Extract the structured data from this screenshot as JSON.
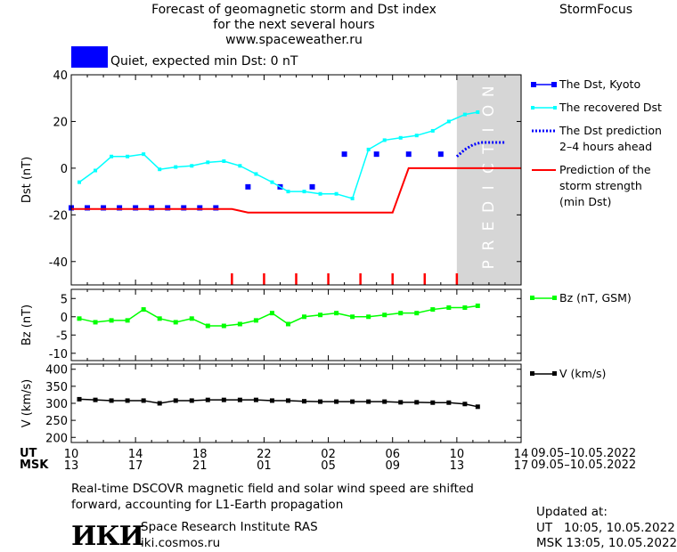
{
  "header": {
    "title_lines": [
      "Forecast of geomagnetic storm and Dst index",
      "for the next several hours",
      "www.spaceweather.ru"
    ],
    "brand": "StormFocus"
  },
  "status": {
    "text": "Quiet, expected min Dst: 0 nT",
    "color": "#0000ff"
  },
  "time_axis": {
    "ut_label": "UT",
    "msk_label": "MSK",
    "ut_ticks": [
      "10",
      "14",
      "18",
      "22",
      "02",
      "06",
      "10",
      "14"
    ],
    "msk_ticks": [
      "13",
      "17",
      "21",
      "01",
      "05",
      "09",
      "13",
      "17"
    ],
    "ut_range": "09.05–10.05.2022",
    "msk_range": "09.05–10.05.2022"
  },
  "legend": {
    "kyoto": "The Dst, Kyoto",
    "recovered": "The recovered Dst",
    "prediction": [
      "The Dst prediction",
      "2–4 hours ahead"
    ],
    "strength": [
      "Prediction of the",
      "storm strength",
      "(min Dst)"
    ],
    "bz": "Bz (nT, GSM)",
    "v": "V (km/s)"
  },
  "prediction_label": "PREDICTION",
  "footer": {
    "note": [
      "Real-time DSCOVR magnetic field and solar wind speed are shifted",
      "forward, accounting for L1-Earth propagation"
    ],
    "org": "Space Research Institute RAS",
    "site": "iki.cosmos.ru",
    "logo": "ИКИ",
    "updated_label": "Updated at:",
    "updated_ut": "UT   10:05, 10.05.2022",
    "updated_msk": "MSK 13:05, 10.05.2022"
  },
  "chart_data": [
    {
      "type": "line",
      "ylabel": "Dst (nT)",
      "xlim": [
        10,
        38
      ],
      "ylim": [
        -50,
        40
      ],
      "yticks": [
        40,
        20,
        0,
        -20,
        -40
      ],
      "x_unit": "hours from 00 UT 09.05.2022",
      "prediction_region": [
        34,
        38
      ],
      "series": [
        {
          "name": "The Dst, Kyoto",
          "style": "squares",
          "color": "#0000ff",
          "x": [
            10,
            11,
            12,
            13,
            14,
            15,
            16,
            17,
            18,
            19,
            21,
            23,
            25,
            27,
            29,
            31,
            33
          ],
          "y": [
            -17,
            -17,
            -17,
            -17,
            -17,
            -17,
            -17,
            -17,
            -17,
            -17,
            -8,
            -8,
            -8,
            6,
            6,
            6,
            6
          ]
        },
        {
          "name": "The recovered Dst",
          "style": "line-squares",
          "color": "#00ffff",
          "x": [
            10.5,
            11.5,
            12.5,
            13.5,
            14.5,
            15.5,
            16.5,
            17.5,
            18.5,
            19.5,
            20.5,
            21.5,
            22.5,
            23.5,
            24.5,
            25.5,
            26.5,
            27.5,
            28.5,
            29.5,
            30.5,
            31.5,
            32.5,
            33.5,
            34.5,
            35.3
          ],
          "y": [
            -6,
            -1,
            5,
            5,
            6,
            -0.5,
            0.5,
            1,
            2.5,
            3,
            1,
            -2.5,
            -6,
            -10,
            -10,
            -11,
            -11,
            -13,
            8,
            12,
            13,
            14,
            16,
            20,
            23,
            24
          ]
        },
        {
          "name": "The Dst prediction 2–4 hours ahead",
          "style": "dotted",
          "color": "#0000ff",
          "x": [
            34,
            34.5,
            35,
            35.5,
            36,
            36.5,
            37
          ],
          "y": [
            5,
            8,
            10,
            11,
            11,
            11,
            11
          ]
        },
        {
          "name": "Prediction of the storm strength (min Dst)",
          "style": "line",
          "color": "#ff0000",
          "x": [
            10,
            20,
            21,
            30,
            31,
            38
          ],
          "y": [
            -17.5,
            -17.5,
            -19,
            -19,
            0,
            0
          ]
        }
      ],
      "markers_x": [
        20,
        22,
        24,
        26,
        28,
        30,
        32,
        34
      ]
    },
    {
      "type": "line",
      "ylabel": "Bz (nT)",
      "xlim": [
        10,
        38
      ],
      "ylim": [
        -12,
        7.5
      ],
      "yticks": [
        5,
        0,
        -5,
        -10
      ],
      "series": [
        {
          "name": "Bz (nT, GSM)",
          "color": "#00ff00",
          "x": [
            10.5,
            11.5,
            12.5,
            13.5,
            14.5,
            15.5,
            16.5,
            17.5,
            18.5,
            19.5,
            20.5,
            21.5,
            22.5,
            23.5,
            24.5,
            25.5,
            26.5,
            27.5,
            28.5,
            29.5,
            30.5,
            31.5,
            32.5,
            33.5,
            34.5,
            35.3
          ],
          "y": [
            -0.5,
            -1.5,
            -1,
            -1,
            2,
            -0.5,
            -1.5,
            -0.5,
            -2.5,
            -2.5,
            -2,
            -1,
            1,
            -2,
            0,
            0.5,
            1,
            0,
            0,
            0.5,
            1,
            1,
            2,
            2.5,
            2.5,
            3
          ]
        }
      ]
    },
    {
      "type": "line",
      "ylabel": "V (km/s)",
      "xlim": [
        10,
        38
      ],
      "ylim": [
        185,
        415
      ],
      "yticks": [
        400,
        350,
        300,
        250,
        200
      ],
      "series": [
        {
          "name": "V (km/s)",
          "color": "#000000",
          "x": [
            10.5,
            11.5,
            12.5,
            13.5,
            14.5,
            15.5,
            16.5,
            17.5,
            18.5,
            19.5,
            20.5,
            21.5,
            22.5,
            23.5,
            24.5,
            25.5,
            26.5,
            27.5,
            28.5,
            29.5,
            30.5,
            31.5,
            32.5,
            33.5,
            34.5,
            35.3
          ],
          "y": [
            312,
            310,
            308,
            308,
            308,
            300,
            308,
            308,
            310,
            310,
            310,
            310,
            308,
            308,
            306,
            305,
            305,
            305,
            305,
            305,
            303,
            303,
            302,
            302,
            298,
            290
          ]
        }
      ]
    }
  ]
}
